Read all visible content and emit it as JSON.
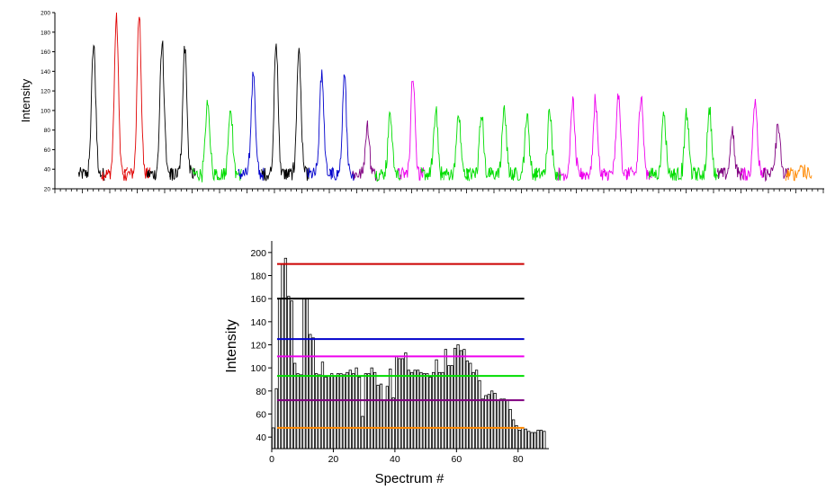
{
  "chart_data": [
    {
      "type": "line",
      "ylabel": "Intensity",
      "xlabel": "",
      "ylim": [
        20,
        200
      ],
      "yticks": [
        "20",
        "40",
        "60",
        "80",
        "100",
        "120",
        "140",
        "160",
        "180",
        "200"
      ],
      "x_tick_labels_shown": false,
      "baseline": 35,
      "peak_sequence": [
        {
          "height": 170,
          "color": "#000000"
        },
        {
          "height": 193,
          "color": "#e00000"
        },
        {
          "height": 199,
          "color": "#e00000"
        },
        {
          "height": 170,
          "color": "#000000"
        },
        {
          "height": 167,
          "color": "#000000"
        },
        {
          "height": 110,
          "color": "#00dd00"
        },
        {
          "height": 104,
          "color": "#00dd00"
        },
        {
          "height": 141,
          "color": "#0000cc"
        },
        {
          "height": 165,
          "color": "#000000"
        },
        {
          "height": 164,
          "color": "#000000"
        },
        {
          "height": 140,
          "color": "#0000cc"
        },
        {
          "height": 132,
          "color": "#0000cc"
        },
        {
          "height": 84,
          "color": "#800080"
        },
        {
          "height": 98,
          "color": "#00dd00"
        },
        {
          "height": 138,
          "color": "#ee00ee"
        },
        {
          "height": 98,
          "color": "#00dd00"
        },
        {
          "height": 96,
          "color": "#00dd00"
        },
        {
          "height": 98,
          "color": "#00dd00"
        },
        {
          "height": 102,
          "color": "#00dd00"
        },
        {
          "height": 97,
          "color": "#00dd00"
        },
        {
          "height": 103,
          "color": "#00dd00"
        },
        {
          "height": 108,
          "color": "#ee00ee"
        },
        {
          "height": 112,
          "color": "#ee00ee"
        },
        {
          "height": 117,
          "color": "#ee00ee"
        },
        {
          "height": 118,
          "color": "#ee00ee"
        },
        {
          "height": 98,
          "color": "#00dd00"
        },
        {
          "height": 97,
          "color": "#00dd00"
        },
        {
          "height": 103,
          "color": "#00dd00"
        },
        {
          "height": 79,
          "color": "#800080"
        },
        {
          "height": 114,
          "color": "#ee00ee"
        },
        {
          "height": 87,
          "color": "#800080"
        },
        {
          "height": 44,
          "color": "#ff8800"
        }
      ]
    },
    {
      "type": "bar",
      "xlabel": "Spectrum #",
      "ylabel": "Intensity",
      "xlim": [
        0,
        90
      ],
      "ylim": [
        30,
        210
      ],
      "xticks": [
        "0",
        "20",
        "40",
        "60",
        "80"
      ],
      "yticks": [
        "40",
        "60",
        "80",
        "100",
        "120",
        "140",
        "160",
        "180",
        "200"
      ],
      "x": [
        1,
        2,
        3,
        4,
        5,
        6,
        7,
        8,
        9,
        10,
        11,
        12,
        13,
        14,
        15,
        16,
        17,
        18,
        19,
        20,
        21,
        22,
        23,
        24,
        25,
        26,
        27,
        28,
        29,
        30,
        31,
        32,
        33,
        34,
        35,
        36,
        37,
        38,
        39,
        40,
        41,
        42,
        43,
        44,
        45,
        46,
        47,
        48,
        49,
        50,
        51,
        52,
        53,
        54,
        55,
        56,
        57,
        58,
        59,
        60,
        61,
        62,
        63,
        64,
        65,
        66,
        67,
        68,
        69,
        70,
        71,
        72,
        73,
        74,
        75,
        76,
        77,
        78,
        79,
        80,
        81,
        82,
        83,
        84,
        85,
        86,
        87,
        88,
        89
      ],
      "values": [
        48,
        82,
        160,
        190,
        195,
        162,
        158,
        104,
        95,
        94,
        160,
        160,
        129,
        126,
        95,
        94,
        105,
        92,
        93,
        95,
        93,
        95,
        95,
        94,
        96,
        98,
        95,
        100,
        92,
        58,
        95,
        95,
        100,
        96,
        85,
        86,
        72,
        84,
        99,
        74,
        110,
        108,
        108,
        113,
        98,
        96,
        98,
        98,
        96,
        95,
        95,
        92,
        96,
        107,
        96,
        96,
        116,
        102,
        102,
        117,
        120,
        115,
        116,
        106,
        104,
        96,
        98,
        89,
        73,
        76,
        77,
        80,
        78,
        72,
        73,
        73,
        72,
        64,
        55,
        50,
        46,
        48,
        47,
        45,
        44,
        44,
        46,
        46,
        45
      ],
      "reference_lines": [
        {
          "value": 190,
          "color": "#cc0000"
        },
        {
          "value": 160,
          "color": "#000000"
        },
        {
          "value": 125,
          "color": "#0000cc"
        },
        {
          "value": 110,
          "color": "#ee00ee"
        },
        {
          "value": 93,
          "color": "#00dd00"
        },
        {
          "value": 72,
          "color": "#800080"
        },
        {
          "value": 48,
          "color": "#ff8800"
        }
      ]
    }
  ]
}
